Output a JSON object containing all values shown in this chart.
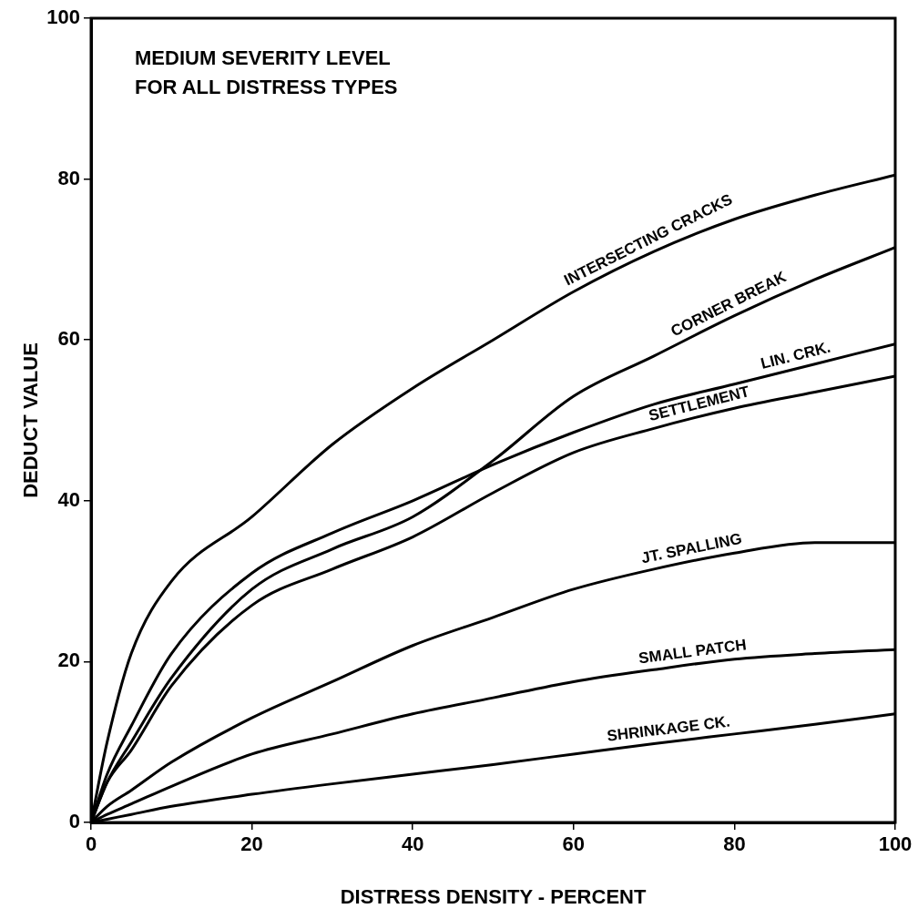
{
  "chart_data": {
    "type": "line",
    "title": "MEDIUM SEVERITY LEVEL FOR ALL DISTRESS TYPES",
    "xlabel": "DISTRESS DENSITY - PERCENT",
    "ylabel": "DEDUCT VALUE",
    "x": [
      0,
      2,
      5,
      10,
      20,
      30,
      40,
      50,
      60,
      70,
      80,
      90,
      100
    ],
    "series": [
      {
        "name": "INTERSECTING CRACKS",
        "color": "#000000",
        "values": [
          0,
          10,
          21,
          30,
          38,
          47,
          54,
          60,
          66,
          71,
          75,
          78,
          80.5
        ]
      },
      {
        "name": "CORNER BREAK",
        "color": "#000000",
        "values": [
          0,
          5,
          10,
          18,
          29,
          34,
          38,
          45,
          53,
          58,
          63,
          67.5,
          71.5
        ]
      },
      {
        "name": "LIN. CRK.",
        "color": "#000000",
        "values": [
          0,
          6,
          12,
          21,
          31,
          36,
          40,
          44.5,
          48.5,
          52,
          54.5,
          57,
          59.5
        ]
      },
      {
        "name": "SETTLEMENT",
        "color": "#000000",
        "values": [
          0,
          5,
          9,
          17,
          27,
          31.5,
          35.5,
          41,
          46,
          49,
          51.5,
          53.5,
          55.5
        ]
      },
      {
        "name": "JT. SPALLING",
        "color": "#000000",
        "values": [
          0,
          2,
          4,
          7.5,
          13,
          17.5,
          22,
          25.5,
          29,
          31.5,
          33.5,
          34.8,
          34.8
        ]
      },
      {
        "name": "SMALL PATCH",
        "color": "#000000",
        "values": [
          0,
          1,
          2.3,
          4.5,
          8.5,
          11,
          13.5,
          15.5,
          17.5,
          19,
          20.3,
          21,
          21.5
        ]
      },
      {
        "name": "SHRINKAGE CK.",
        "color": "#000000",
        "values": [
          0,
          0.4,
          1,
          2,
          3.5,
          4.8,
          6,
          7.2,
          8.5,
          9.8,
          11,
          12.2,
          13.5
        ]
      }
    ],
    "xlim": [
      0,
      100
    ],
    "ylim": [
      0,
      100
    ],
    "xticks": [
      0,
      20,
      40,
      60,
      80,
      100
    ],
    "yticks": [
      0,
      20,
      40,
      60,
      80,
      100
    ],
    "grid": false,
    "legend": false,
    "marker": "none",
    "line_style": "solid"
  }
}
